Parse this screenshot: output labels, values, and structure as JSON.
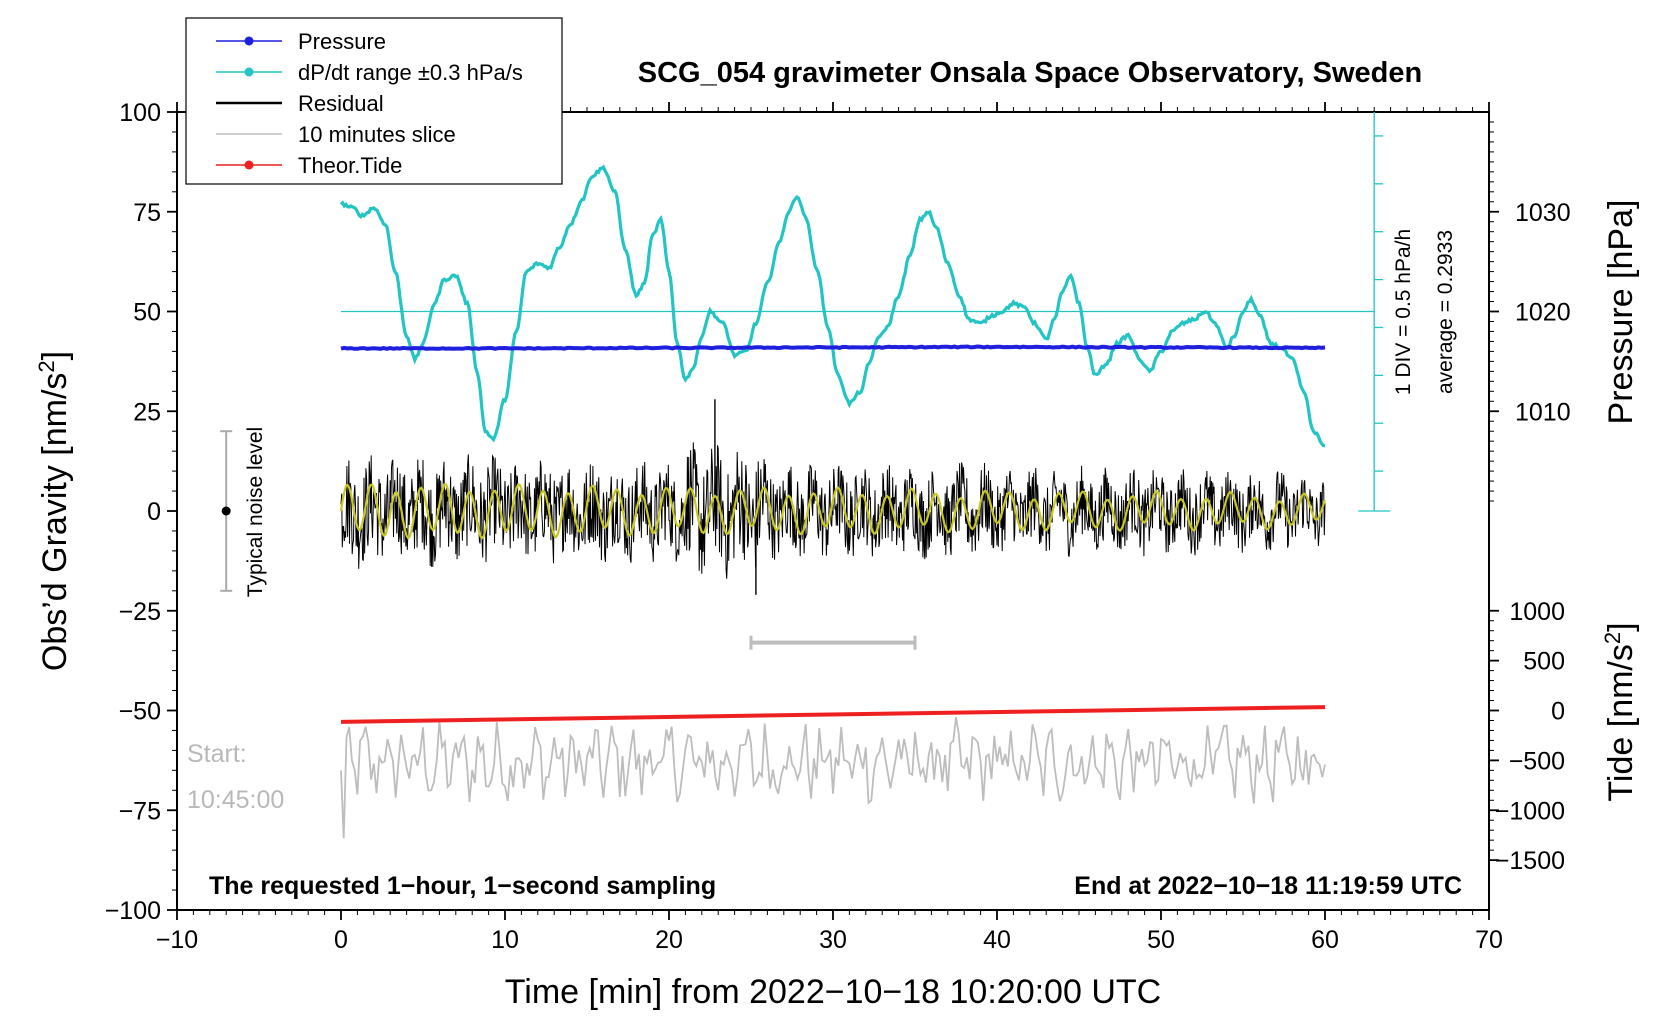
{
  "chart_data": {
    "type": "line",
    "title": "SCG_054 gravimeter Onsala Space Observatory, Sweden",
    "xlabel": "Time [min] from 2022−10−18 10:20:00 UTC",
    "ylabel_left": "Obs’d Gravity [nm/s",
    "ylabel_left_sup": "2",
    "ylabel_left_end": "]",
    "ylabel_right_top": "Pressure [hPa]",
    "ylabel_right_bottom": "Tide [nm/s",
    "ylabel_right_bottom_sup": "2",
    "ylabel_right_bottom_end": "]",
    "xlim": [
      -10,
      70
    ],
    "ylim": [
      -100,
      100
    ],
    "pressure_axis": {
      "ticks": [
        1010,
        1020,
        1030
      ],
      "scale_hpa_per_nms2": 0.4,
      "offset_hpa": 1000
    },
    "tide_axis": {
      "ticks": [
        1000,
        500,
        0,
        -500,
        -1000,
        -1500
      ],
      "scale_nms2_per_gravity": 40,
      "offset_nms2": 2000
    },
    "x_ticks": [
      "−10",
      "0",
      "10",
      "20",
      "30",
      "40",
      "50",
      "60",
      "70"
    ],
    "x_tick_values": [
      -10,
      0,
      10,
      20,
      30,
      40,
      50,
      60,
      70
    ],
    "y_ticks": [
      "100",
      "75",
      "50",
      "25",
      "0",
      "−25",
      "−50",
      "−75",
      "−100"
    ],
    "y_tick_values": [
      100,
      75,
      50,
      25,
      0,
      -25,
      -50,
      -75,
      -100
    ],
    "pressure_tick_labels": [
      "1010",
      "1020",
      "1030"
    ],
    "tide_tick_labels": [
      "1000",
      "500",
      "0",
      "−500",
      "−1000",
      "−1500"
    ],
    "legend": [
      {
        "label": "Pressure",
        "color": "#1f1fdd",
        "marker": true
      },
      {
        "label": "dP/dt range ±0.3 hPa/s",
        "color": "#22c4c4",
        "marker": true
      },
      {
        "label": "Residual",
        "color": "#000000",
        "marker": false
      },
      {
        "label": "10 minutes slice",
        "color": "#bdbdbd",
        "marker": false
      },
      {
        "label": "Theor.Tide",
        "color": "#ee2020",
        "marker": true
      }
    ],
    "series": [
      {
        "name": "Pressure",
        "units": "hPa",
        "color": "#1f1fdd",
        "x": [
          0,
          10,
          20,
          30,
          40,
          50,
          60
        ],
        "y": [
          1016.3,
          1016.3,
          1016.35,
          1016.4,
          1016.45,
          1016.4,
          1016.35
        ]
      },
      {
        "name": "dP/dt",
        "units": "gravity-axis position",
        "color": "#22c4c4",
        "x": [
          0,
          0.7,
          1.3,
          2.0,
          2.7,
          3.3,
          4.0,
          4.5,
          5.0,
          5.7,
          6.3,
          7.0,
          7.7,
          8.3,
          8.8,
          9.3,
          10.0,
          10.7,
          11.3,
          12.0,
          12.7,
          13.3,
          14.0,
          14.7,
          15.3,
          16.0,
          16.7,
          17.3,
          18.0,
          18.5,
          19.0,
          19.5,
          20.0,
          20.5,
          21.0,
          21.5,
          22.0,
          22.5,
          23.3,
          24.0,
          24.7,
          25.3,
          26.0,
          26.7,
          27.3,
          27.8,
          28.3,
          29.0,
          29.7,
          30.3,
          31.0,
          31.7,
          32.2,
          32.7,
          33.3,
          34.0,
          34.7,
          35.3,
          35.8,
          36.3,
          37.0,
          37.7,
          38.3,
          39.0,
          39.7,
          40.3,
          41.0,
          41.7,
          42.3,
          43.0,
          43.5,
          44.0,
          44.5,
          45.0,
          45.5,
          46.0,
          46.7,
          47.3,
          48.0,
          48.7,
          49.3,
          50.0,
          50.7,
          51.3,
          52.0,
          52.7,
          53.3,
          54.0,
          54.5,
          55.0,
          55.5,
          56.0,
          56.7,
          57.3,
          58.0,
          58.7,
          59.3,
          60.0
        ],
        "y": [
          77,
          76,
          74,
          76,
          72,
          60,
          44,
          38,
          42,
          52,
          58,
          59,
          52,
          35,
          20,
          18,
          28,
          45,
          60,
          62,
          61,
          66,
          72,
          78,
          84,
          86,
          80,
          66,
          54,
          57,
          69,
          73,
          60,
          42,
          33,
          36,
          44,
          50,
          47,
          39,
          40,
          47,
          57,
          67,
          75,
          79,
          74,
          61,
          46,
          34,
          27,
          30,
          37,
          43,
          46,
          54,
          64,
          73,
          75,
          71,
          62,
          54,
          48,
          47,
          49,
          50,
          52,
          51,
          47,
          43,
          48,
          55,
          59,
          52,
          41,
          34,
          37,
          42,
          44,
          38,
          35,
          40,
          45,
          47,
          48,
          50,
          47,
          41,
          44,
          50,
          53,
          49,
          42,
          41,
          38,
          30,
          20,
          16
        ]
      },
      {
        "name": "Residual",
        "units": "nm/s2",
        "color": "#000000",
        "x_range": [
          0,
          60
        ],
        "amplitude_min": -12,
        "amplitude_max": 12,
        "spikes": [
          {
            "x": 22.8,
            "y": 28
          },
          {
            "x": 25.3,
            "y": -21
          }
        ]
      },
      {
        "name": "Residual filtered",
        "units": "nm/s2",
        "color": "#c8c820",
        "x_range": [
          0,
          60
        ],
        "amplitude": 6
      },
      {
        "name": "Theor.Tide",
        "units": "nm/s2",
        "color": "#ee2020",
        "x": [
          0,
          60
        ],
        "y": [
          -114,
          34
        ]
      },
      {
        "name": "10 minutes slice",
        "units": "gravity-axis position",
        "color": "#bdbdbd",
        "x_range": [
          0,
          60
        ],
        "center": -63,
        "amplitude": 10,
        "start_dip": -82
      }
    ],
    "dpdt_scale": {
      "label_div": "1 DIV = 0.5 hPa/h",
      "label_avg": "average = 0.2933",
      "x": 63,
      "y_top": 100,
      "y_bottom": 0,
      "ref_line_y": 50,
      "ticks_y": [
        94,
        82,
        70,
        58,
        46,
        34,
        22,
        10
      ]
    },
    "noise_bar": {
      "label": "Typical noise level",
      "x": -7,
      "y_top": 20,
      "y_bottom": -20,
      "y_center": 0
    },
    "slice_bar": {
      "x_start": 25,
      "x_end": 35,
      "y": -33
    },
    "start_label_line1": "Start:",
    "start_label_line2": "10:45:00",
    "footer_left": "The requested 1−hour, 1−second sampling",
    "footer_right": "End at 2022−10−18 11:19:59 UTC"
  }
}
